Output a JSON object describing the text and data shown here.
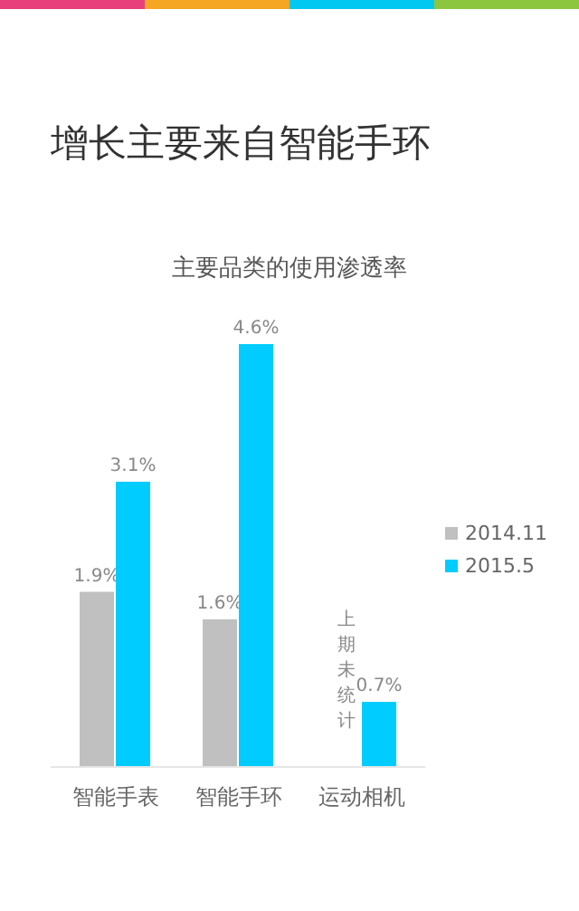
{
  "chart_data": {
    "type": "bar",
    "title": "增长主要来自智能手环",
    "subtitle": "主要品类的使用渗透率",
    "categories": [
      "智能手表",
      "智能手环",
      "运动相机"
    ],
    "series": [
      {
        "name": "2014.11",
        "color": "#c0c0c0",
        "values": [
          1.9,
          1.6,
          null
        ],
        "value_labels": [
          "1.9%",
          "1.6%",
          null
        ]
      },
      {
        "name": "2015.5",
        "color": "#00ccff",
        "values": [
          3.1,
          4.6,
          0.7
        ],
        "value_labels": [
          "3.1%",
          "4.6%",
          "0.7%"
        ]
      }
    ],
    "relative": false,
    "legend": "right",
    "annotations": [
      "上期未统计"
    ]
  }
}
